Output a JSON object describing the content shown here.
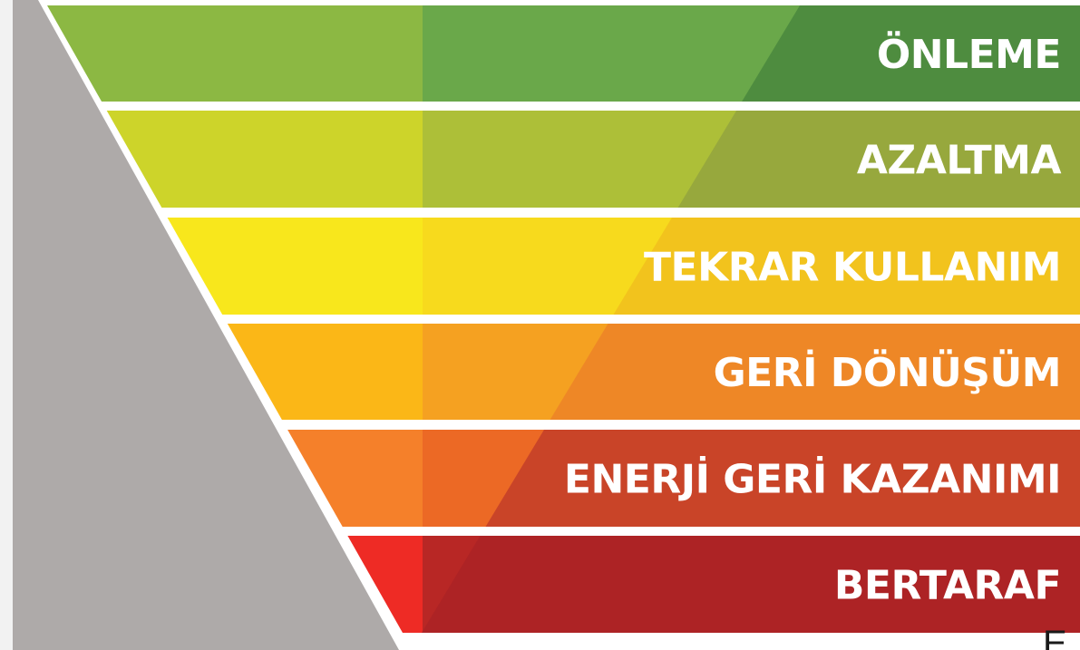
{
  "diagram": {
    "title": "",
    "tiers": [
      {
        "label": "ÖNLEME",
        "colors": {
          "left": "#8cb843",
          "mid": "#6aa84a",
          "right": "#4e8c3f"
        }
      },
      {
        "label": "AZALTMA",
        "colors": {
          "left": "#cdd42a",
          "mid": "#adbf38",
          "right": "#97a83d"
        }
      },
      {
        "label": "TEKRAR KULLANIM",
        "colors": {
          "left": "#f8e71c",
          "mid": "#f7da1d",
          "right": "#f2c31d"
        }
      },
      {
        "label": "GERİ DÖNÜŞÜM",
        "colors": {
          "left": "#fbb717",
          "mid": "#f5a121",
          "right": "#ee8726"
        }
      },
      {
        "label": "ENERJİ GERİ KAZANIMI",
        "colors": {
          "left": "#f5802a",
          "mid": "#ec6925",
          "right": "#c94428"
        }
      },
      {
        "label": "BERTARAF",
        "colors": {
          "left": "#ee2b25",
          "mid": "#b82725",
          "right": "#ad2325"
        }
      }
    ],
    "background_triangle_color": "#aeaaa9",
    "page_background": "#ffffff"
  },
  "corner_text": "E"
}
